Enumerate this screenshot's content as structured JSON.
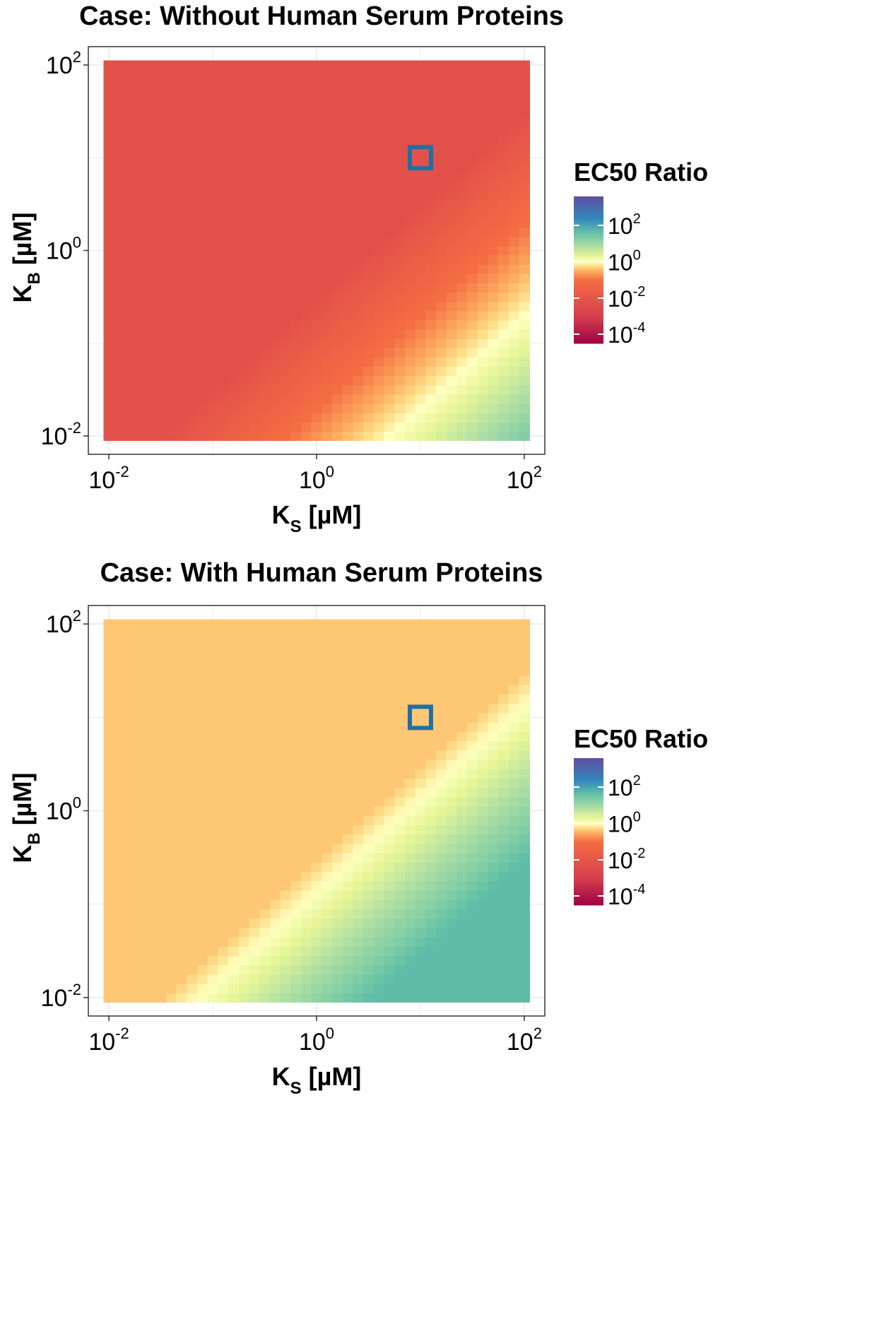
{
  "chart_data": [
    {
      "type": "heatmap",
      "title": "Case: Without Human Serum Proteins",
      "xlabel": {
        "main": "K",
        "sub": "S",
        "unit": " [µM]"
      },
      "ylabel": {
        "main": "K",
        "sub": "B",
        "unit": " [µM]"
      },
      "x_scale": "log10",
      "y_scale": "log10",
      "xlim": [
        0.01,
        100
      ],
      "ylim": [
        0.01,
        100
      ],
      "x_ticks": [
        {
          "base": "10",
          "exp": "-2"
        },
        {
          "base": "10",
          "exp": "0"
        },
        {
          "base": "10",
          "exp": "2"
        }
      ],
      "y_ticks": [
        {
          "base": "10",
          "exp": "-2"
        },
        {
          "base": "10",
          "exp": "0"
        },
        {
          "base": "10",
          "exp": "2"
        }
      ],
      "grid": true,
      "value": "EC50 Ratio",
      "value_scale": "log10",
      "value_model": {
        "floor": -2.2,
        "ceiling": 1.7,
        "offset": 0.5,
        "min_bound": -3.3,
        "steepness": 1.0
      },
      "highlight": {
        "x": 10,
        "y": 10
      },
      "legend": {
        "title": "EC50 Ratio",
        "placement": "right",
        "range_log10": [
          -4.5,
          3.6
        ],
        "ticks": [
          {
            "base": "10",
            "exp": "2",
            "log10": 2
          },
          {
            "base": "10",
            "exp": "0",
            "log10": 0
          },
          {
            "base": "10",
            "exp": "-2",
            "log10": -2
          },
          {
            "base": "10",
            "exp": "-4",
            "log10": -4
          }
        ]
      }
    },
    {
      "type": "heatmap",
      "title": "Case: With Human Serum Proteins",
      "xlabel": {
        "main": "K",
        "sub": "S",
        "unit": " [µM]"
      },
      "ylabel": {
        "main": "K",
        "sub": "B",
        "unit": " [µM]"
      },
      "x_scale": "log10",
      "y_scale": "log10",
      "xlim": [
        0.01,
        100
      ],
      "ylim": [
        0.01,
        100
      ],
      "x_ticks": [
        {
          "base": "10",
          "exp": "-2"
        },
        {
          "base": "10",
          "exp": "0"
        },
        {
          "base": "10",
          "exp": "2"
        }
      ],
      "y_ticks": [
        {
          "base": "10",
          "exp": "-2"
        },
        {
          "base": "10",
          "exp": "0"
        },
        {
          "base": "10",
          "exp": "2"
        }
      ],
      "grid": true,
      "value": "EC50 Ratio",
      "value_scale": "log10",
      "value_model": {
        "floor": -0.35,
        "ceiling": 1.7,
        "offset": 0.5,
        "min_bound": -0.35,
        "steepness": 1.0
      },
      "highlight": {
        "x": 10,
        "y": 10
      },
      "legend": {
        "title": "EC50 Ratio",
        "placement": "right",
        "range_log10": [
          -4.5,
          3.6
        ],
        "ticks": [
          {
            "base": "10",
            "exp": "2",
            "log10": 2
          },
          {
            "base": "10",
            "exp": "0",
            "log10": 0
          },
          {
            "base": "10",
            "exp": "-2",
            "log10": -2
          },
          {
            "base": "10",
            "exp": "-4",
            "log10": -4
          }
        ]
      }
    }
  ],
  "colors": {
    "spectral": [
      "#9e0142",
      "#d53e4f",
      "#f46d43",
      "#fdae61",
      "#fee08b",
      "#ffffbf",
      "#e6f598",
      "#abdda4",
      "#66c2a5",
      "#3288bd",
      "#5e4fa2"
    ],
    "spectral_stops_log10": [
      -4.5,
      -3.0,
      -1.0,
      -0.5,
      -0.2,
      0.0,
      0.35,
      0.9,
      1.6,
      2.4,
      3.6
    ],
    "highlight": "#1f6fa6",
    "grid": "#ebebeb",
    "axis": "#333333",
    "text": "#000000"
  }
}
